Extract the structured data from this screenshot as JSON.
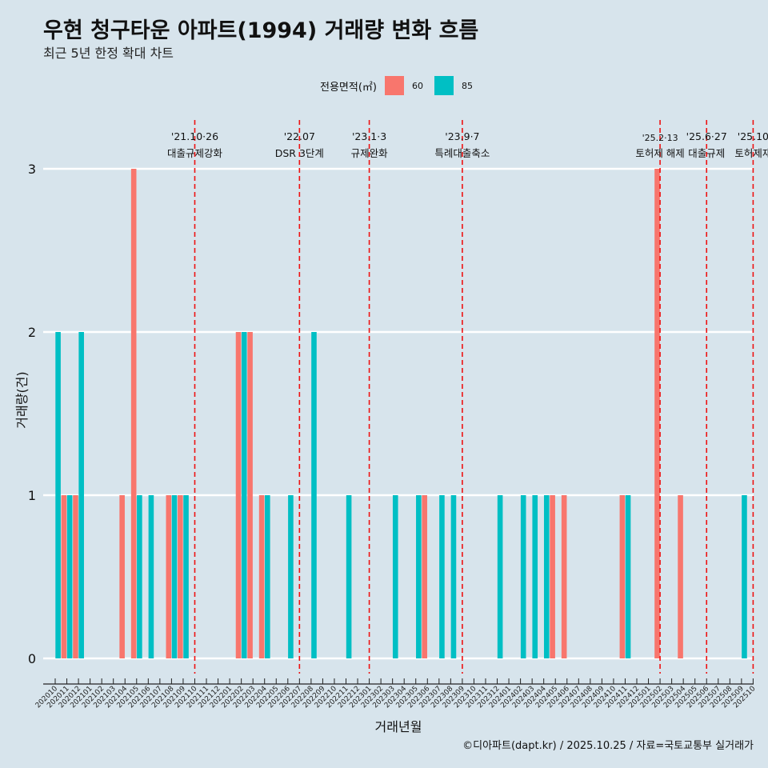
{
  "header": {
    "title": "우현 청구타운 아파트(1994) 거래량 변화 흐름",
    "subtitle": "최근 5년 한정 확대 차트"
  },
  "legend": {
    "title": "전용면적(㎡)",
    "items": [
      {
        "label": "60",
        "color": "#f8766d"
      },
      {
        "label": "85",
        "color": "#00bfc4"
      }
    ]
  },
  "caption": "©디아파트(dapt.kr) / 2025.10.25 / 자료=국토교통부 실거래가",
  "chart_data": {
    "type": "bar",
    "title": "우현 청구타운 아파트(1994) 거래량 변화 흐름",
    "xlabel": "거래년월",
    "ylabel": "거래량(건)",
    "ylim": [
      0,
      3
    ],
    "yticks": [
      0,
      1,
      2,
      3
    ],
    "categories": [
      "202010",
      "202011",
      "202012",
      "202101",
      "202102",
      "202103",
      "202104",
      "202105",
      "202106",
      "202107",
      "202108",
      "202109",
      "202110",
      "202111",
      "202112",
      "202201",
      "202202",
      "202203",
      "202204",
      "202205",
      "202206",
      "202207",
      "202208",
      "202209",
      "202210",
      "202211",
      "202212",
      "202301",
      "202302",
      "202303",
      "202304",
      "202305",
      "202306",
      "202307",
      "202308",
      "202309",
      "202310",
      "202311",
      "202312",
      "202401",
      "202402",
      "202403",
      "202404",
      "202405",
      "202406",
      "202407",
      "202408",
      "202409",
      "202410",
      "202411",
      "202412",
      "202501",
      "202502",
      "202503",
      "202504",
      "202505",
      "202506",
      "202507",
      "202508",
      "202509",
      "202510"
    ],
    "series": [
      {
        "name": "60",
        "color": "#f8766d",
        "values": [
          0,
          1,
          1,
          0,
          0,
          0,
          1,
          3,
          0,
          0,
          1,
          1,
          0,
          0,
          0,
          0,
          2,
          2,
          1,
          0,
          0,
          0,
          0,
          0,
          0,
          0,
          0,
          0,
          0,
          0,
          0,
          0,
          1,
          0,
          0,
          0,
          0,
          0,
          0,
          0,
          0,
          0,
          0,
          1,
          1,
          0,
          0,
          0,
          0,
          1,
          0,
          0,
          3,
          0,
          1,
          0,
          0,
          0,
          0,
          0,
          0
        ]
      },
      {
        "name": "85",
        "color": "#00bfc4",
        "values": [
          2,
          1,
          2,
          0,
          0,
          0,
          0,
          1,
          1,
          0,
          1,
          1,
          0,
          0,
          0,
          0,
          2,
          0,
          1,
          0,
          1,
          0,
          2,
          0,
          0,
          1,
          0,
          0,
          0,
          1,
          0,
          1,
          0,
          1,
          1,
          0,
          0,
          0,
          1,
          0,
          1,
          1,
          1,
          0,
          0,
          0,
          0,
          0,
          0,
          1,
          0,
          0,
          0,
          0,
          0,
          0,
          0,
          0,
          0,
          1,
          0
        ]
      }
    ],
    "annotations": [
      {
        "date": "'21.10·26",
        "label": "대출규제강화",
        "month_index": 12.0
      },
      {
        "date": "'22.07",
        "label": "DSR 3단계",
        "month_index": 21.0
      },
      {
        "date": "'23.1·3",
        "label": "규제완화",
        "month_index": 27.0
      },
      {
        "date": "'23.9·7",
        "label": "특례대출축소",
        "month_index": 35.0
      },
      {
        "date": "'25.2·13",
        "label": "토허제 해제",
        "month_index": 52.0
      },
      {
        "date": "'25.6·27",
        "label": "대출규제",
        "month_index": 56.0
      },
      {
        "date": "'25.10",
        "label": "토허제재",
        "month_index": 60.0
      }
    ]
  }
}
